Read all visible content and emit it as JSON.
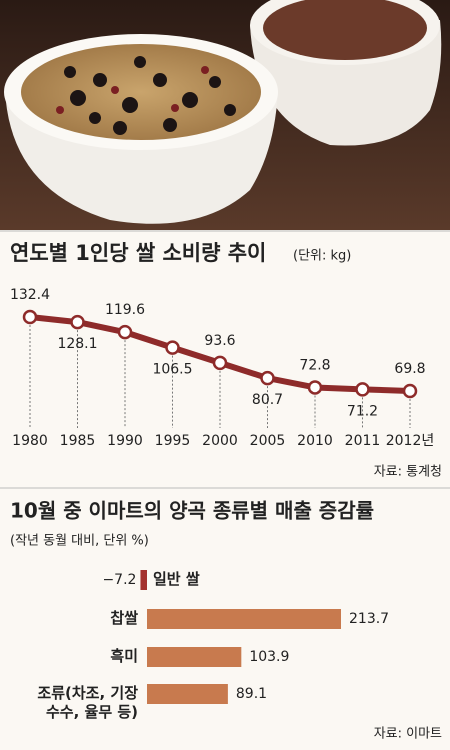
{
  "chart_data": [
    {
      "type": "line",
      "title": "연도별 1인당 쌀 소비량 추이",
      "subtitle": "(단위: kg)",
      "categories": [
        "1980",
        "1985",
        "1990",
        "1995",
        "2000",
        "2005",
        "2010",
        "2011",
        "2012년"
      ],
      "values": [
        132.4,
        128.1,
        119.6,
        106.5,
        93.6,
        80.7,
        72.8,
        71.2,
        69.8
      ],
      "color": "#8e2b2a",
      "source": "자료: 통계청"
    },
    {
      "type": "hbar",
      "title": "10월 중 이마트의 양곡 종류별 매출 증감률",
      "subtitle": "(작년 동월 대비, 단위 %)",
      "categories": [
        "일반 쌀",
        "찹쌀",
        "흑미",
        "조류(차조, 기장\n수수, 율무 등)"
      ],
      "values": [
        -7.2,
        213.7,
        103.9,
        89.1
      ],
      "value_labels": [
        "−7.2",
        "213.7",
        "103.9",
        "89.1"
      ],
      "colors": [
        "#a3302c",
        "#c87a4e",
        "#c87a4e",
        "#c87a4e"
      ],
      "source": "자료: 이마트"
    }
  ]
}
